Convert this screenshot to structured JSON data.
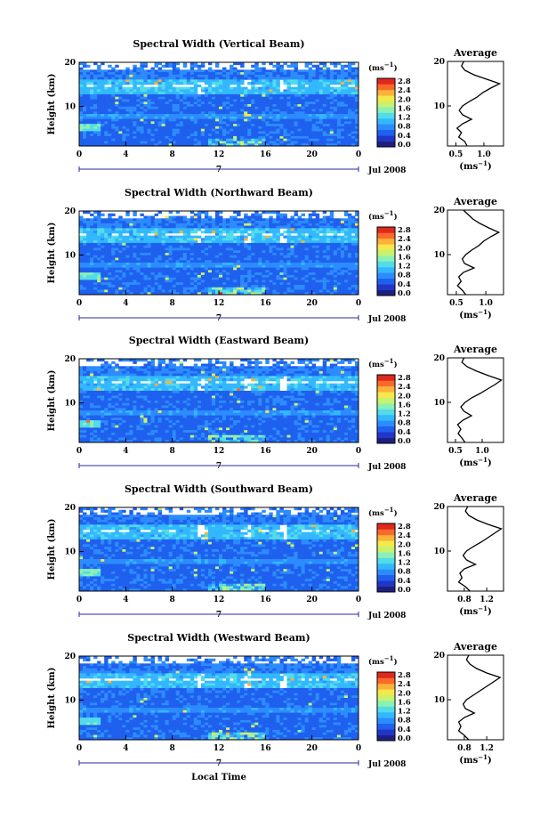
{
  "chart_data": [
    {
      "type": "heatmap",
      "title": "Spectral Width (Vertical Beam)",
      "ylabel": "Height (km)",
      "xlabel": "",
      "xlim": [
        0,
        24
      ],
      "ylim": [
        1,
        20
      ],
      "x_ticks": [
        "0",
        "4",
        "8",
        "12",
        "16",
        "20",
        "0"
      ],
      "y_ticks": [
        "20",
        "10"
      ],
      "date_label": "7",
      "month_label": "Jul 2008",
      "colorbar": {
        "unit_base": "(ms",
        "unit_exp": "−1",
        "unit_close": ")",
        "ticks": [
          "2.8",
          "2.4",
          "2.0",
          "1.6",
          "1.2",
          "0.8",
          "0.4",
          "0.0"
        ]
      },
      "average": {
        "title": "Average",
        "unit_base": "(ms",
        "unit_exp": "−1",
        "unit_close": ")",
        "x_ticks": [
          "0.5",
          "1.0"
        ],
        "xlim": [
          0.35,
          1.35
        ],
        "y_ticks": [
          "20",
          "10"
        ],
        "profile": [
          [
            1,
            0.7
          ],
          [
            2,
            0.66
          ],
          [
            3,
            0.55
          ],
          [
            4,
            0.6
          ],
          [
            5,
            0.52
          ],
          [
            6,
            0.62
          ],
          [
            7,
            0.78
          ],
          [
            8,
            0.62
          ],
          [
            9,
            0.56
          ],
          [
            10,
            0.62
          ],
          [
            11,
            0.74
          ],
          [
            12,
            0.88
          ],
          [
            13,
            0.98
          ],
          [
            14,
            1.12
          ],
          [
            15,
            1.28
          ],
          [
            16,
            1.05
          ],
          [
            17,
            0.82
          ],
          [
            18,
            0.66
          ],
          [
            19,
            0.6
          ],
          [
            20,
            0.64
          ]
        ]
      }
    },
    {
      "type": "heatmap",
      "title": "Spectral Width (Northward Beam)",
      "ylabel": "Height (km)",
      "xlabel": "",
      "xlim": [
        0,
        24
      ],
      "ylim": [
        1,
        20
      ],
      "x_ticks": [
        "0",
        "4",
        "8",
        "12",
        "16",
        "20",
        "0"
      ],
      "y_ticks": [
        "20",
        "10"
      ],
      "date_label": "7",
      "month_label": "Jul 2008",
      "colorbar": {
        "unit_base": "(ms",
        "unit_exp": "−1",
        "unit_close": ")",
        "ticks": [
          "2.8",
          "2.4",
          "2.0",
          "1.6",
          "1.2",
          "0.8",
          "0.4",
          "0.0"
        ]
      },
      "average": {
        "title": "Average",
        "unit_base": "(ms",
        "unit_exp": "−1",
        "unit_close": ")",
        "x_ticks": [
          "0.5",
          "1.0"
        ],
        "xlim": [
          0.35,
          1.3
        ],
        "y_ticks": [
          "20",
          "10"
        ],
        "profile": [
          [
            1,
            0.66
          ],
          [
            2,
            0.6
          ],
          [
            3,
            0.52
          ],
          [
            4,
            0.58
          ],
          [
            5,
            0.54
          ],
          [
            6,
            0.62
          ],
          [
            7,
            0.8
          ],
          [
            8,
            0.64
          ],
          [
            9,
            0.6
          ],
          [
            10,
            0.66
          ],
          [
            11,
            0.76
          ],
          [
            12,
            0.88
          ],
          [
            13,
            0.96
          ],
          [
            14,
            1.08
          ],
          [
            15,
            1.22
          ],
          [
            16,
            1.05
          ],
          [
            17,
            0.9
          ],
          [
            18,
            0.78
          ],
          [
            19,
            0.7
          ],
          [
            20,
            0.62
          ]
        ]
      }
    },
    {
      "type": "heatmap",
      "title": "Spectral Width (Eastward Beam)",
      "ylabel": "Height (km)",
      "xlabel": "",
      "xlim": [
        0,
        24
      ],
      "ylim": [
        1,
        20
      ],
      "x_ticks": [
        "0",
        "4",
        "8",
        "12",
        "16",
        "20",
        "0"
      ],
      "y_ticks": [
        "20",
        "10"
      ],
      "date_label": "7",
      "month_label": "Jul 2008",
      "colorbar": {
        "unit_base": "(ms",
        "unit_exp": "−1",
        "unit_close": ")",
        "ticks": [
          "2.8",
          "2.4",
          "2.0",
          "1.6",
          "1.2",
          "0.8",
          "0.4",
          "0.0"
        ]
      },
      "average": {
        "title": "Average",
        "unit_base": "(ms",
        "unit_exp": "−1",
        "unit_close": ")",
        "x_ticks": [
          "0.5",
          "1.0"
        ],
        "xlim": [
          0.35,
          1.4
        ],
        "y_ticks": [
          "20",
          "10"
        ],
        "profile": [
          [
            1,
            0.68
          ],
          [
            2,
            0.62
          ],
          [
            3,
            0.55
          ],
          [
            4,
            0.6
          ],
          [
            5,
            0.54
          ],
          [
            6,
            0.64
          ],
          [
            7,
            0.8
          ],
          [
            8,
            0.66
          ],
          [
            9,
            0.6
          ],
          [
            10,
            0.68
          ],
          [
            11,
            0.8
          ],
          [
            12,
            0.96
          ],
          [
            13,
            1.1
          ],
          [
            14,
            1.24
          ],
          [
            15,
            1.36
          ],
          [
            16,
            1.12
          ],
          [
            17,
            0.9
          ],
          [
            18,
            0.72
          ],
          [
            19,
            0.62
          ],
          [
            20,
            0.66
          ]
        ]
      }
    },
    {
      "type": "heatmap",
      "title": "Spectral Width (Southward Beam)",
      "ylabel": "Height (km)",
      "xlabel": "",
      "xlim": [
        0,
        24
      ],
      "ylim": [
        1,
        20
      ],
      "x_ticks": [
        "0",
        "4",
        "8",
        "12",
        "16",
        "20",
        "0"
      ],
      "y_ticks": [
        "20",
        "10"
      ],
      "date_label": "7",
      "month_label": "Jul 2008",
      "colorbar": {
        "unit_base": "(ms",
        "unit_exp": "−1",
        "unit_close": ")",
        "ticks": [
          "2.8",
          "2.4",
          "2.0",
          "1.6",
          "1.2",
          "0.8",
          "0.4",
          "0.0"
        ]
      },
      "average": {
        "title": "Average",
        "unit_base": "(ms",
        "unit_exp": "−1",
        "unit_close": ")",
        "x_ticks": [
          "0.8",
          "1.2"
        ],
        "xlim": [
          0.5,
          1.5
        ],
        "y_ticks": [
          "20",
          "10"
        ],
        "profile": [
          [
            1,
            0.9
          ],
          [
            2,
            0.82
          ],
          [
            3,
            0.7
          ],
          [
            4,
            0.76
          ],
          [
            5,
            0.72
          ],
          [
            6,
            0.8
          ],
          [
            7,
            1.0
          ],
          [
            8,
            0.84
          ],
          [
            9,
            0.78
          ],
          [
            10,
            0.84
          ],
          [
            11,
            0.96
          ],
          [
            12,
            1.1
          ],
          [
            13,
            1.22
          ],
          [
            14,
            1.34
          ],
          [
            15,
            1.46
          ],
          [
            16,
            1.22
          ],
          [
            17,
            1.02
          ],
          [
            18,
            0.88
          ],
          [
            19,
            0.82
          ],
          [
            20,
            0.86
          ]
        ]
      }
    },
    {
      "type": "heatmap",
      "title": "Spectral Width (Westward Beam)",
      "ylabel": "Height (km)",
      "xlabel": "Local Time",
      "xlim": [
        0,
        24
      ],
      "ylim": [
        1,
        20
      ],
      "x_ticks": [
        "0",
        "4",
        "8",
        "12",
        "16",
        "20",
        "0"
      ],
      "y_ticks": [
        "20",
        "10"
      ],
      "date_label": "7",
      "month_label": "Jul 2008",
      "colorbar": {
        "unit_base": "(ms",
        "unit_exp": "−1",
        "unit_close": ")",
        "ticks": [
          "2.8",
          "2.4",
          "2.0",
          "1.6",
          "1.2",
          "0.8",
          "0.4",
          "0.0"
        ]
      },
      "average": {
        "title": "Average",
        "unit_base": "(ms",
        "unit_exp": "−1",
        "unit_close": ")",
        "x_ticks": [
          "0.8",
          "1.2"
        ],
        "xlim": [
          0.5,
          1.5
        ],
        "y_ticks": [
          "20",
          "10"
        ],
        "profile": [
          [
            1,
            0.88
          ],
          [
            2,
            0.8
          ],
          [
            3,
            0.7
          ],
          [
            4,
            0.74
          ],
          [
            5,
            0.7
          ],
          [
            6,
            0.8
          ],
          [
            7,
            0.98
          ],
          [
            8,
            0.82
          ],
          [
            9,
            0.78
          ],
          [
            10,
            0.84
          ],
          [
            11,
            0.96
          ],
          [
            12,
            1.08
          ],
          [
            13,
            1.2
          ],
          [
            14,
            1.32
          ],
          [
            15,
            1.44
          ],
          [
            16,
            1.2
          ],
          [
            17,
            1.02
          ],
          [
            18,
            0.9
          ],
          [
            19,
            0.84
          ],
          [
            20,
            0.88
          ]
        ]
      }
    }
  ],
  "colors": {
    "colormap": [
      "#1e1e82",
      "#2036c8",
      "#1f60ee",
      "#2c8cff",
      "#33b8ff",
      "#52dcea",
      "#8cf0b4",
      "#c8f26e",
      "#f4e84a",
      "#fcb23a",
      "#f86a2a",
      "#e0281e"
    ],
    "axis": "#000000",
    "date_bar": "#2a2aa0"
  }
}
